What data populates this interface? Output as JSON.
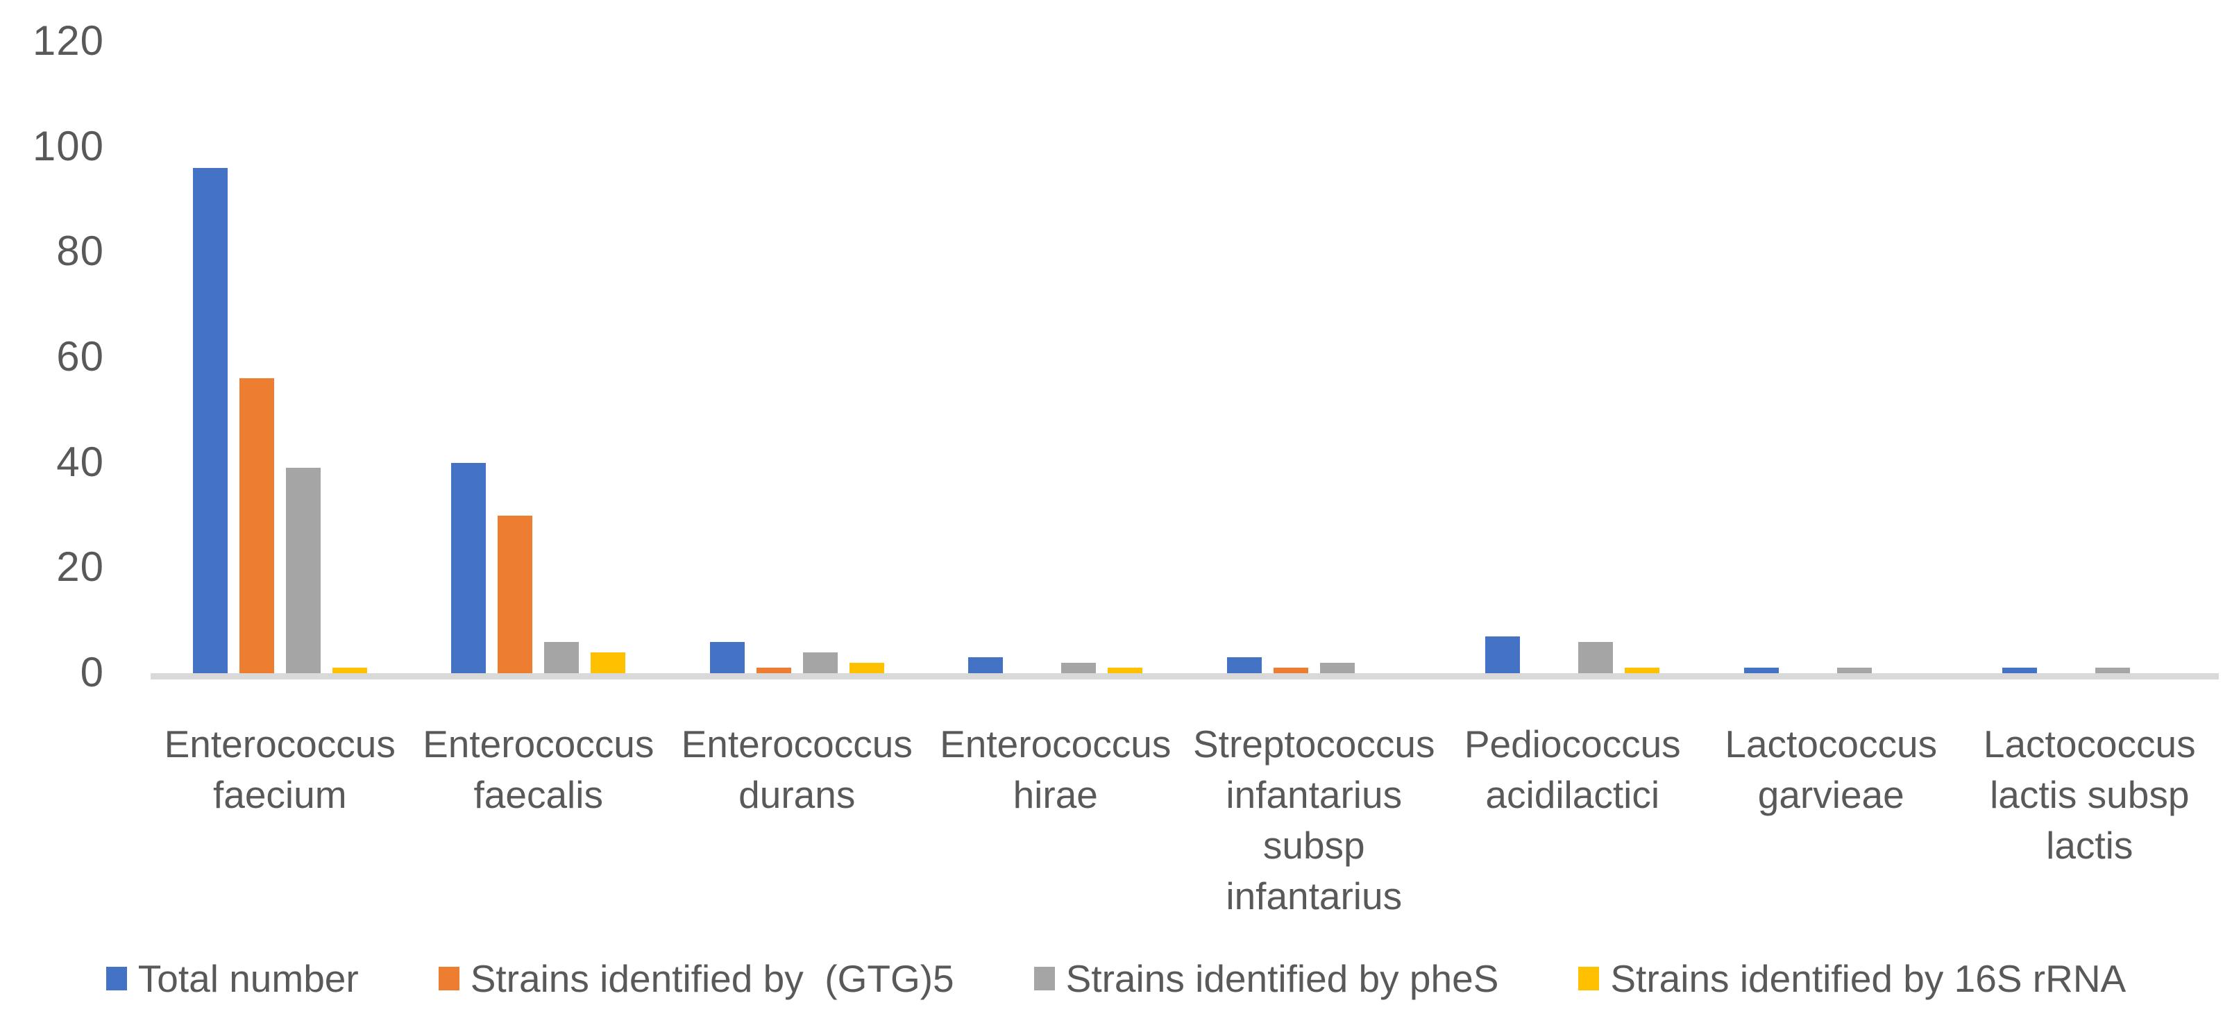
{
  "chart_data": {
    "type": "bar",
    "title": "",
    "xlabel": "",
    "ylabel": "",
    "ylim": [
      0,
      120
    ],
    "y_ticks": [
      0,
      20,
      40,
      60,
      80,
      100,
      120
    ],
    "grid": false,
    "legend_position": "bottom",
    "categories": [
      "Enterococcus faecium",
      "Enterococcus faecalis",
      "Enterococcus durans",
      "Enterococcus hirae",
      "Streptococcus infantarius subsp infantarius",
      "Pediococcus acidilactici",
      "Lactococcus garvieae",
      "Lactococcus lactis subsp lactis"
    ],
    "category_label_lines": [
      [
        "Enterococcus",
        "faecium"
      ],
      [
        "Enterococcus",
        "faecalis"
      ],
      [
        "Enterococcus",
        "durans"
      ],
      [
        "Enterococcus",
        "hirae"
      ],
      [
        "Streptococcus",
        "infantarius",
        "subsp",
        "infantarius"
      ],
      [
        "Pediococcus",
        "acidilactici"
      ],
      [
        "Lactococcus",
        "garvieae"
      ],
      [
        "Lactococcus",
        "lactis subsp",
        "lactis"
      ]
    ],
    "series": [
      {
        "name": "Total number",
        "color": "#4472C4",
        "values": [
          96,
          40,
          6,
          3,
          3,
          7,
          1,
          1
        ]
      },
      {
        "name": "Strains identified by  (GTG)5",
        "color": "#ED7D31",
        "values": [
          56,
          30,
          1,
          0,
          1,
          0,
          0,
          0
        ]
      },
      {
        "name": "Strains identified by pheS",
        "color": "#A5A5A5",
        "values": [
          39,
          6,
          4,
          2,
          2,
          6,
          1,
          1
        ]
      },
      {
        "name": "Strains identified by 16S rRNA",
        "color": "#FFC000",
        "values": [
          1,
          4,
          2,
          1,
          0,
          1,
          0,
          0
        ]
      }
    ],
    "axis_line_color": "#D9D9D9",
    "text_color": "#595959",
    "background": "#FFFFFF"
  }
}
